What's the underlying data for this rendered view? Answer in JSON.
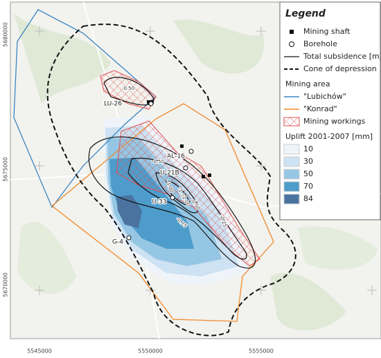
{
  "map": {
    "legend": {
      "title": "Legend",
      "symbols": [
        "Mining shaft",
        "Borehole",
        "Total subsidence [m]",
        "Cone of depression"
      ],
      "mining_area": {
        "title": "Mining area",
        "items": [
          "\"Lubichów\"",
          "\"Konrad\"",
          "Mining workings"
        ]
      },
      "uplift": {
        "title": "Uplift 2001-2007 [mm]",
        "classes": [
          {
            "value": 10,
            "color": "#eef4fa"
          },
          {
            "value": 30,
            "color": "#cde2f2"
          },
          {
            "value": 50,
            "color": "#95c6e4"
          },
          {
            "value": 70,
            "color": "#4d9ccc"
          },
          {
            "value": 84,
            "color": "#4a73a0"
          }
        ]
      }
    },
    "x_labels": [
      "5545000",
      "5550000",
      "5555000"
    ],
    "y_labels": [
      "5680000",
      "5675000",
      "5670000"
    ],
    "boreholes": [
      "LU-26",
      "AL-16",
      "U-21B",
      "U-33",
      "G-4"
    ],
    "contour_labels": [
      "-0.50",
      "-0.50",
      "-1.00",
      "-1.50",
      "-2.00",
      "-0.50",
      "-0.75",
      "-0.25"
    ]
  }
}
